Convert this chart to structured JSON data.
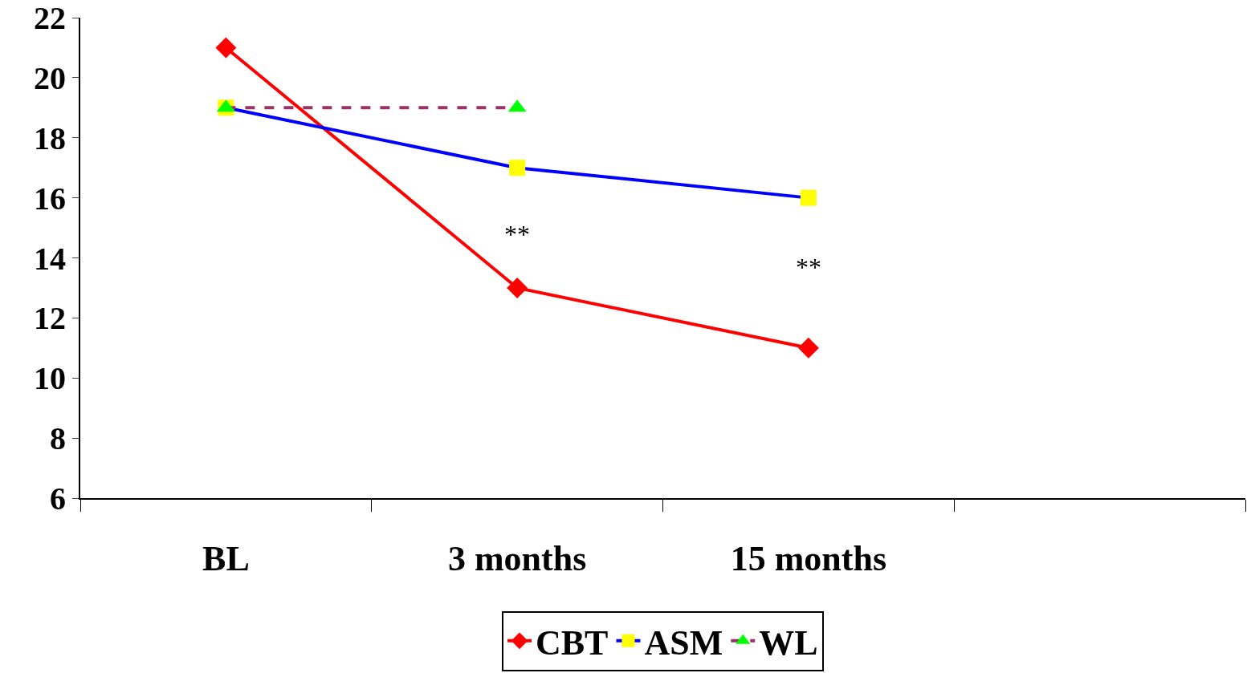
{
  "chart_data": {
    "type": "line",
    "categories": [
      "BL",
      "3 months",
      "15 months",
      null
    ],
    "series": [
      {
        "name": "CBT",
        "color": "#ff0000",
        "marker": "diamond",
        "colors": [
          "#ff0000",
          "#ff0000",
          "#ff0000",
          "#ff0000"
        ],
        "line_style": "solid",
        "values": [
          21,
          13,
          11,
          null
        ]
      },
      {
        "name": "ASM",
        "color": "#0000ff",
        "marker": "square",
        "colors": [
          "#ffff00",
          "#ffff00",
          "#ffff00",
          "#ffff00"
        ],
        "line_style": "solid",
        "values": [
          19,
          17,
          16,
          null
        ]
      },
      {
        "name": "WL",
        "color": "#993366",
        "marker": "triangle",
        "colors": [
          "#00ff00",
          "#00ff00",
          "#00ff00",
          "#00ff00"
        ],
        "line_style": "dashed",
        "values": [
          19,
          19,
          null,
          null
        ]
      }
    ],
    "ylim": [
      6,
      22
    ],
    "yticks": [
      6,
      8,
      10,
      12,
      14,
      16,
      18,
      20,
      22
    ],
    "grid": false,
    "legend": "bottom",
    "annotations": [
      "**",
      "**"
    ]
  }
}
